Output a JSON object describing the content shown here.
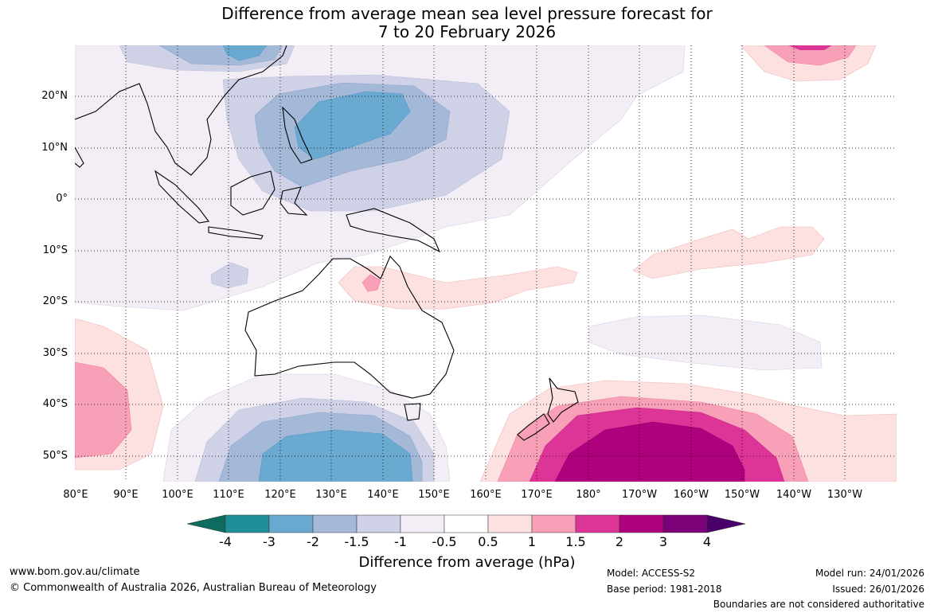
{
  "title_line1": "Difference from average mean sea level pressure forecast for",
  "title_line2": "7 to 20 February 2026",
  "lat_labels": [
    "20°N",
    "10°N",
    "0°",
    "10°S",
    "20°S",
    "30°S",
    "40°S",
    "50°S"
  ],
  "lon_labels": [
    "80°E",
    "90°E",
    "100°E",
    "110°E",
    "120°E",
    "130°E",
    "140°E",
    "150°E",
    "160°E",
    "170°E",
    "180°",
    "170°W",
    "160°W",
    "150°W",
    "140°W",
    "130°W"
  ],
  "colorbar": {
    "label": "Difference from average (hPa)",
    "ticks": [
      "-4",
      "-3",
      "-2",
      "-1.5",
      "-1",
      "-0.5",
      "0.5",
      "1",
      "1.5",
      "2",
      "3",
      "4"
    ],
    "colors": [
      "#0d6b5f",
      "#1f9097",
      "#6aaad1",
      "#a4b8d8",
      "#cfd1e6",
      "#f3eef6",
      "#ffffff",
      "#fde0e0",
      "#f7a0b8",
      "#dd3497",
      "#ae017e",
      "#7a0177",
      "#49006a"
    ]
  },
  "footer": {
    "website": "www.bom.gov.au/climate",
    "copyright": "© Commonwealth of Australia 2026, Australian Bureau of Meteorology",
    "model": "Model: ACCESS-S2",
    "base_period": "Base period: 1981-2018",
    "model_run": "Model run: 24/01/2026",
    "issued": "Issued: 26/01/2026",
    "disclaimer": "Boundaries are not considered authoritative"
  }
}
